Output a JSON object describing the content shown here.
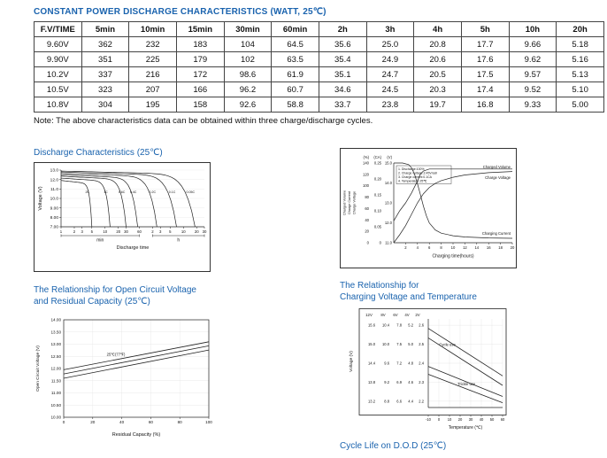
{
  "page": {
    "title": "CONSTANT POWER DISCHARGE CHARACTERISTICS (WATT, 25℃)",
    "note": "Note: The above characteristics data can be obtained within three charge/discharge cycles."
  },
  "table": {
    "headers": [
      "F.V/TIME",
      "5min",
      "10min",
      "15min",
      "30min",
      "60min",
      "2h",
      "3h",
      "4h",
      "5h",
      "10h",
      "20h"
    ],
    "rows": [
      [
        "9.60V",
        "362",
        "232",
        "183",
        "104",
        "64.5",
        "35.6",
        "25.0",
        "20.8",
        "17.7",
        "9.66",
        "5.18"
      ],
      [
        "9.90V",
        "351",
        "225",
        "179",
        "102",
        "63.5",
        "35.4",
        "24.9",
        "20.6",
        "17.6",
        "9.62",
        "5.16"
      ],
      [
        "10.2V",
        "337",
        "216",
        "172",
        "98.6",
        "61.9",
        "35.1",
        "24.7",
        "20.5",
        "17.5",
        "9.57",
        "5.13"
      ],
      [
        "10.5V",
        "323",
        "207",
        "166",
        "96.2",
        "60.7",
        "34.6",
        "24.5",
        "20.3",
        "17.4",
        "9.52",
        "5.10"
      ],
      [
        "10.8V",
        "304",
        "195",
        "158",
        "92.6",
        "58.8",
        "33.7",
        "23.8",
        "19.7",
        "16.8",
        "9.33",
        "5.00"
      ]
    ]
  },
  "headings": {
    "cycle_life": "Cycle Life on D.O.D (25℃)"
  },
  "colors": {
    "heading": "#1a63ae",
    "ink": "#1a1a1a",
    "border": "#444444"
  },
  "chart_data": [
    {
      "id": "discharge",
      "type": "line",
      "title": "Discharge Characteristics (25℃)",
      "ylabel": "Voltage (V)",
      "yticks": [
        13,
        12,
        11,
        10,
        9,
        8,
        7
      ],
      "ytick_labels": [
        "13.0",
        "12.0",
        "11.0",
        "10.0",
        "9.00",
        "8.00",
        "7.00"
      ],
      "ylim": [
        7.0,
        13.0
      ],
      "xlabel": "Discharge time",
      "x_unit_groups": [
        "min",
        "h"
      ],
      "xticks": [
        {
          "t": 1,
          "label": "1"
        },
        {
          "t": 2,
          "label": "2"
        },
        {
          "t": 3,
          "label": "3"
        },
        {
          "t": 5,
          "label": "5"
        },
        {
          "t": 10,
          "label": "10"
        },
        {
          "t": 20,
          "label": "20"
        },
        {
          "t": 30,
          "label": "30"
        },
        {
          "t": 60,
          "label": "60"
        },
        {
          "t": 120,
          "label": "2"
        },
        {
          "t": 180,
          "label": "3"
        },
        {
          "t": 300,
          "label": "5"
        },
        {
          "t": 600,
          "label": "10"
        },
        {
          "t": 1200,
          "label": "20"
        },
        {
          "t": 1800,
          "label": "30"
        }
      ],
      "curves": [
        {
          "label": "2C",
          "end_min": 5,
          "v_start": 11.9
        },
        {
          "label": "1C",
          "end_min": 13,
          "v_start": 12.15
        },
        {
          "label": "0.6C",
          "end_min": 30,
          "v_start": 12.35
        },
        {
          "label": "0.4C",
          "end_min": 55,
          "v_start": 12.5
        },
        {
          "label": "0.2C",
          "end_min": 150,
          "v_start": 12.65
        },
        {
          "label": "0.1C",
          "end_min": 420,
          "v_start": 12.8
        },
        {
          "label": "0.05C",
          "end_min": 1100,
          "v_start": 12.9
        }
      ]
    },
    {
      "id": "charging",
      "type": "line",
      "axes_left": [
        {
          "name": "Charged Volume",
          "unit": "(%)",
          "tick_values": [
            0,
            20,
            40,
            60,
            80,
            100,
            120,
            140
          ],
          "tick_labels": [
            "0",
            "20",
            "40",
            "60",
            "80",
            "100",
            "120",
            "140"
          ],
          "range": [
            0,
            140
          ]
        },
        {
          "name": "Charge Current",
          "unit": "(CA)",
          "tick_values": [
            0,
            0.05,
            0.1,
            0.15,
            0.2,
            0.25
          ],
          "tick_labels": [
            "0",
            "0.05",
            "0.10",
            "0.15",
            "0.20",
            "0.25"
          ],
          "range": [
            0,
            0.25
          ]
        },
        {
          "name": "Charge Voltage",
          "unit": "(V)",
          "tick_values": [
            11,
            12,
            13,
            14,
            15
          ],
          "tick_labels": [
            "11.0",
            "12.0",
            "13.0",
            "14.0",
            "15.0"
          ],
          "range": [
            11,
            15
          ]
        }
      ],
      "xlabel": "Charging time(hours)",
      "xticks": [
        2,
        4,
        6,
        8,
        10,
        12,
        14,
        16,
        18,
        20
      ],
      "xlim": [
        0,
        20
      ],
      "legend_notes": [
        "1. Discharge:100%",
        "2. Charge voltage:2.45V/cell",
        "3. Charge current:0.1CA",
        "4. Temperature:25℃"
      ],
      "series": [
        {
          "name": "Charged Volume",
          "axis": "(%)",
          "points": [
            [
              0,
              0
            ],
            [
              1,
              14
            ],
            [
              2,
              30
            ],
            [
              3,
              50
            ],
            [
              4,
              70
            ],
            [
              5,
              86
            ],
            [
              6,
              97
            ],
            [
              7,
              104
            ],
            [
              8,
              109
            ],
            [
              10,
              115
            ],
            [
              12,
              119
            ],
            [
              16,
              123
            ],
            [
              20,
              125
            ]
          ]
        },
        {
          "name": "Charge Voltage",
          "axis": "(V)",
          "points": [
            [
              0,
              12.1
            ],
            [
              1,
              12.6
            ],
            [
              2,
              13.0
            ],
            [
              3,
              13.5
            ],
            [
              4,
              14.1
            ],
            [
              4.5,
              14.45
            ],
            [
              5,
              14.6
            ],
            [
              6,
              14.7
            ],
            [
              8,
              14.7
            ],
            [
              12,
              14.7
            ],
            [
              20,
              14.7
            ]
          ]
        },
        {
          "name": "Charging Current",
          "axis": "(CA)",
          "points": [
            [
              0,
              0.25
            ],
            [
              1.5,
              0.25
            ],
            [
              2.5,
              0.245
            ],
            [
              3,
              0.235
            ],
            [
              3.5,
              0.215
            ],
            [
              4,
              0.185
            ],
            [
              4.5,
              0.15
            ],
            [
              5,
              0.115
            ],
            [
              5.5,
              0.085
            ],
            [
              6,
              0.062
            ],
            [
              7,
              0.04
            ],
            [
              8,
              0.03
            ],
            [
              10,
              0.022
            ],
            [
              12,
              0.018
            ],
            [
              16,
              0.015
            ],
            [
              20,
              0.014
            ]
          ]
        }
      ]
    },
    {
      "id": "ocv",
      "type": "line",
      "title_line1": "The Relationship for Open Circuit Voltage",
      "title_line2": "and Residual Capacity (25℃)",
      "ylabel": "Open Circuit Voltage (V)",
      "ytick_values": [
        14,
        13.5,
        13,
        12.5,
        12,
        11.5,
        11,
        10.5,
        10
      ],
      "ytick_labels": [
        "14.00",
        "13.50",
        "13.00",
        "12.50",
        "12.00",
        "11.50",
        "11.00",
        "10.50",
        "10.00"
      ],
      "ylim": [
        10.0,
        14.0
      ],
      "xlabel": "Residual Capacity (%)",
      "xticks": [
        0,
        20,
        40,
        60,
        80,
        100
      ],
      "annotation": "25℃(77℉)",
      "lines": [
        {
          "points": [
            [
              0,
              11.95
            ],
            [
              100,
              13.1
            ]
          ]
        },
        {
          "points": [
            [
              0,
              11.78
            ],
            [
              100,
              12.93
            ]
          ]
        },
        {
          "points": [
            [
              0,
              11.6
            ],
            [
              100,
              12.76
            ]
          ]
        }
      ]
    },
    {
      "id": "temp",
      "type": "line",
      "title_line1": "The Relationship for",
      "title_line2": "Charging Voltage and Temperature",
      "col_headers": [
        "12V",
        "8V",
        "6V",
        "4V",
        "2V"
      ],
      "ylabel": "Voltage (V)",
      "row_values": [
        15.6,
        15.0,
        14.4,
        13.8,
        13.2
      ],
      "tick_rows": [
        [
          "15.6",
          "10.4",
          "7.8",
          "5.2",
          "2.6"
        ],
        [
          "15.0",
          "10.0",
          "7.5",
          "5.0",
          "2.5"
        ],
        [
          "14.4",
          "9.6",
          "7.2",
          "4.8",
          "2.4"
        ],
        [
          "13.8",
          "9.2",
          "6.9",
          "4.6",
          "2.3"
        ],
        [
          "13.2",
          "8.8",
          "6.6",
          "4.4",
          "2.2"
        ]
      ],
      "ylim_12v": [
        13.0,
        15.8
      ],
      "xlabel": "Temperature (℃)",
      "xticks": [
        -10,
        0,
        10,
        20,
        30,
        40,
        50,
        60
      ],
      "bands": [
        {
          "label": "Cycle use",
          "lines": [
            [
              [
                -10,
                15.5
              ],
              [
                60,
                14.0
              ]
            ],
            [
              [
                -10,
                15.2
              ],
              [
                60,
                13.7
              ]
            ]
          ]
        },
        {
          "label": "Trickle use",
          "lines": [
            [
              [
                -10,
                14.3
              ],
              [
                60,
                13.35
              ]
            ],
            [
              [
                -10,
                14.05
              ],
              [
                60,
                13.15
              ]
            ]
          ]
        }
      ]
    }
  ]
}
